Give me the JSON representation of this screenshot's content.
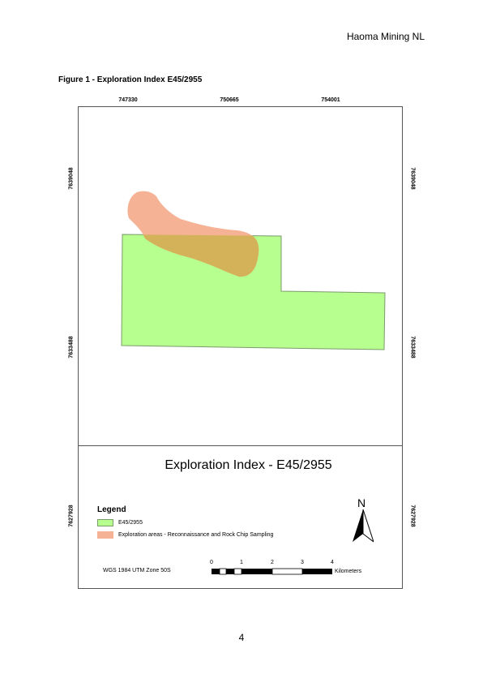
{
  "header": {
    "company": "Haoma Mining NL"
  },
  "figure": {
    "caption": "Figure 1 - Exploration Index E45/2955"
  },
  "map": {
    "title": "Exploration Index - E45/2955",
    "eastings": [
      "747330",
      "750665",
      "754001"
    ],
    "northings": [
      "7639048",
      "7633488",
      "7627928"
    ],
    "colors": {
      "tenement_fill": "#b7ff8f",
      "exploration_fill": "#f5b295",
      "overlap_fill": "#d4b259"
    },
    "legend": {
      "title": "Legend",
      "items": [
        {
          "label": "E45/2955",
          "color": "#b7ff8f"
        },
        {
          "label": "Exploration areas - Reconnaissance and Rock Chip Sampling",
          "color": "#f5b295"
        }
      ]
    },
    "north": "N",
    "crs": "WGS 1984 UTM Zone 50S",
    "scalebar": {
      "ticks": [
        "0",
        "1",
        "2",
        "3",
        "4"
      ],
      "unit": "Kilometers"
    }
  },
  "page": {
    "number": "4"
  }
}
